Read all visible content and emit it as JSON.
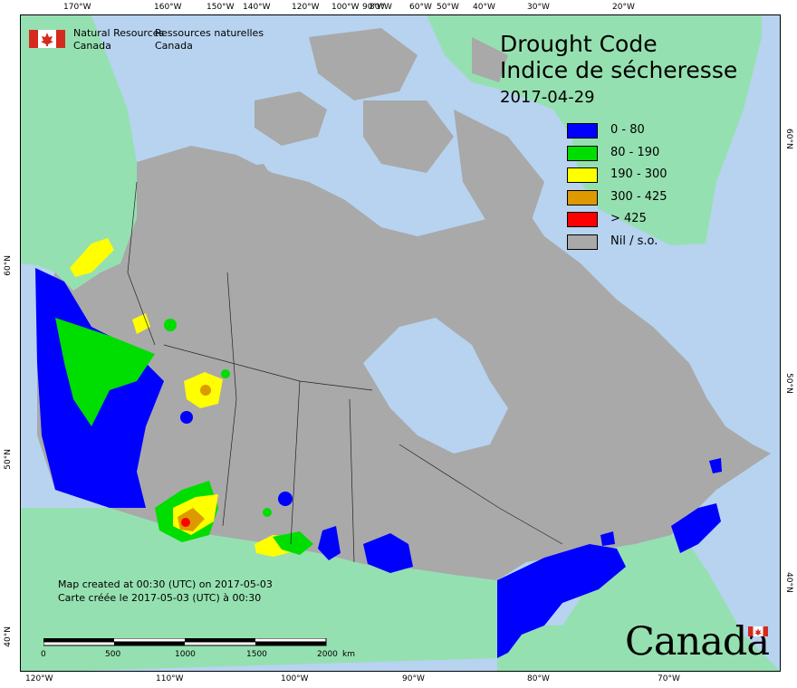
{
  "title": {
    "line1": "Drought Code",
    "line2": "Indice de sécheresse",
    "date": "2017-04-29"
  },
  "agency": {
    "en_line1": "Natural Resources",
    "en_line2": "Canada",
    "fr_line1": "Ressources naturelles",
    "fr_line2": "Canada"
  },
  "legend": [
    {
      "label": "0 - 80",
      "color": "#0000ff"
    },
    {
      "label": "80 - 190",
      "color": "#00dd00"
    },
    {
      "label": "190 - 300",
      "color": "#ffff00"
    },
    {
      "label": "300 - 425",
      "color": "#dd9900"
    },
    {
      "label": "> 425",
      "color": "#ff0000"
    },
    {
      "label": "Nil / s.o.",
      "color": "#a9a9a9"
    }
  ],
  "credit": {
    "en": "Map created at 00:30 (UTC) on 2017-05-03",
    "fr": "Carte créée le 2017-05-03 (UTC) à 00:30"
  },
  "scale": {
    "labels": [
      "0",
      "500",
      "1000",
      "1500",
      "2000"
    ],
    "unit": "km"
  },
  "wordmark": "Canada",
  "graticule": {
    "top": [
      "170°W",
      "160°W",
      "150°W",
      "140°W",
      "120°W",
      "100°W",
      "90°W",
      "80°W",
      "60°W",
      "50°W",
      "40°W",
      "30°W",
      "20°W"
    ],
    "bottom": [
      "120°W",
      "110°W",
      "100°W",
      "90°W",
      "80°W",
      "70°W"
    ],
    "left": [
      "60°N",
      "50°N",
      "40°N"
    ],
    "right": [
      "60°N",
      "50°N",
      "40°N"
    ]
  },
  "colors": {
    "water": "#b7d3f0",
    "foreign_land": "#95e0b0",
    "nil": "#a9a9a9"
  }
}
